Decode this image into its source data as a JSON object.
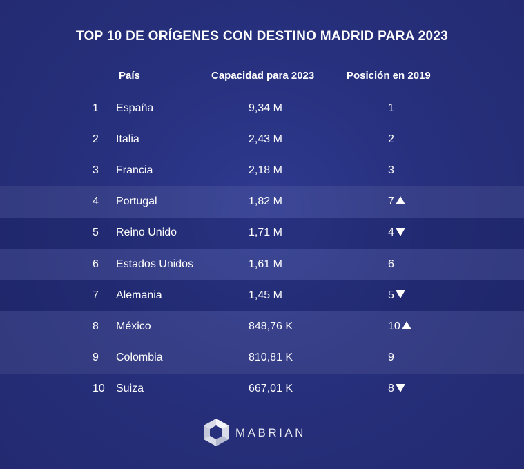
{
  "chart_data": {
    "type": "table",
    "title": "TOP 10 DE ORÍGENES CON DESTINO MADRID PARA 2023",
    "columns": [
      "País",
      "Capacidad para 2023",
      "Posición en 2019"
    ],
    "rows": [
      {
        "rank": "1",
        "country": "España",
        "capacity": "9,34 M",
        "position_2019": "1",
        "trend": ""
      },
      {
        "rank": "2",
        "country": "Italia",
        "capacity": "2,43 M",
        "position_2019": "2",
        "trend": ""
      },
      {
        "rank": "3",
        "country": "Francia",
        "capacity": "2,18 M",
        "position_2019": "3",
        "trend": ""
      },
      {
        "rank": "4",
        "country": "Portugal",
        "capacity": "1,82 M",
        "position_2019": "7",
        "trend": "up"
      },
      {
        "rank": "5",
        "country": "Reino Unido",
        "capacity": "1,71 M",
        "position_2019": "4",
        "trend": "down"
      },
      {
        "rank": "6",
        "country": "Estados Unidos",
        "capacity": "1,61 M",
        "position_2019": "6",
        "trend": ""
      },
      {
        "rank": "7",
        "country": "Alemania",
        "capacity": "1,45 M",
        "position_2019": "5",
        "trend": "down"
      },
      {
        "rank": "8",
        "country": "México",
        "capacity": "848,76 K",
        "position_2019": "10",
        "trend": "up"
      },
      {
        "rank": "9",
        "country": "Colombia",
        "capacity": "810,81 K",
        "position_2019": "9",
        "trend": ""
      },
      {
        "rank": "10",
        "country": "Suiza",
        "capacity": "667,01 K",
        "position_2019": "8",
        "trend": "down"
      }
    ],
    "row_shading": [
      "",
      "",
      "",
      "light",
      "dark",
      "light",
      "dark",
      "light",
      "light",
      ""
    ]
  },
  "brand": {
    "name": "MABRIAN",
    "background_color": "#27307d",
    "text_color": "#ffffff"
  }
}
